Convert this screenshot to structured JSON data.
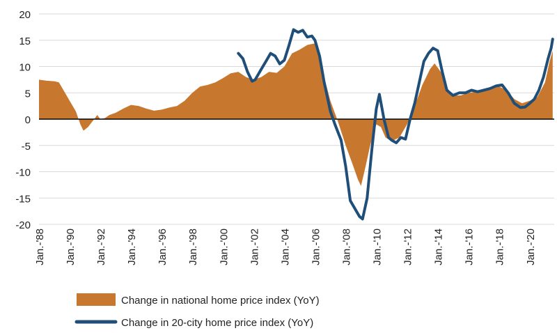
{
  "chart_data": {
    "type": "area",
    "title": "",
    "xlabel": "",
    "ylabel": "",
    "ylim": [
      -20,
      20
    ],
    "yticks": [
      20,
      15,
      10,
      5,
      0,
      -5,
      -10,
      -15,
      -20
    ],
    "xlim": [
      1988,
      2021.6
    ],
    "xticks": [
      {
        "x": 1988,
        "label": "Jan.-'88"
      },
      {
        "x": 1990,
        "label": "Jan.-'90"
      },
      {
        "x": 1992,
        "label": "Jan.-'92"
      },
      {
        "x": 1994,
        "label": "Jan.-'94"
      },
      {
        "x": 1996,
        "label": "Jan.-'96"
      },
      {
        "x": 1998,
        "label": "Jan.-'98"
      },
      {
        "x": 2000,
        "label": "Jan.-'00"
      },
      {
        "x": 2002,
        "label": "Jan.-'02"
      },
      {
        "x": 2004,
        "label": "Jan.-'04"
      },
      {
        "x": 2006,
        "label": "Jan.-'06"
      },
      {
        "x": 2008,
        "label": "Jan.-'08"
      },
      {
        "x": 2010,
        "label": "Jan.-'10"
      },
      {
        "x": 2012,
        "label": "Jan.-'12"
      },
      {
        "x": 2014,
        "label": "Jan.-'14"
      },
      {
        "x": 2016,
        "label": "Jan.-'16"
      },
      {
        "x": 2018,
        "label": "Jan.-'18"
      },
      {
        "x": 2020,
        "label": "Jan.-'20"
      }
    ],
    "grid": true,
    "legend_position": "bottom-left",
    "series": [
      {
        "name": "Change in national home price index (YoY)",
        "kind": "area",
        "color": "#c8772e",
        "points": [
          [
            1988.0,
            7.5
          ],
          [
            1988.5,
            7.3
          ],
          [
            1989.0,
            7.2
          ],
          [
            1989.3,
            7.0
          ],
          [
            1989.6,
            5.5
          ],
          [
            1990.0,
            3.5
          ],
          [
            1990.4,
            1.5
          ],
          [
            1990.7,
            -1.0
          ],
          [
            1990.9,
            -2.2
          ],
          [
            1991.2,
            -1.5
          ],
          [
            1991.6,
            0.0
          ],
          [
            1991.8,
            0.8
          ],
          [
            1992.0,
            0.0
          ],
          [
            1992.3,
            0.2
          ],
          [
            1992.6,
            0.8
          ],
          [
            1993.0,
            1.2
          ],
          [
            1993.5,
            2.0
          ],
          [
            1994.0,
            2.7
          ],
          [
            1994.5,
            2.5
          ],
          [
            1995.0,
            2.0
          ],
          [
            1995.5,
            1.6
          ],
          [
            1996.0,
            1.8
          ],
          [
            1996.5,
            2.2
          ],
          [
            1997.0,
            2.5
          ],
          [
            1997.5,
            3.5
          ],
          [
            1998.0,
            5.0
          ],
          [
            1998.5,
            6.2
          ],
          [
            1999.0,
            6.5
          ],
          [
            1999.5,
            7.0
          ],
          [
            2000.0,
            7.8
          ],
          [
            2000.5,
            8.7
          ],
          [
            2001.0,
            9.0
          ],
          [
            2001.5,
            8.0
          ],
          [
            2002.0,
            7.5
          ],
          [
            2002.5,
            8.0
          ],
          [
            2003.0,
            9.0
          ],
          [
            2003.5,
            8.8
          ],
          [
            2004.0,
            10.0
          ],
          [
            2004.5,
            12.5
          ],
          [
            2005.0,
            13.2
          ],
          [
            2005.5,
            14.1
          ],
          [
            2006.0,
            14.4
          ],
          [
            2006.3,
            12.0
          ],
          [
            2006.6,
            8.0
          ],
          [
            2007.0,
            3.5
          ],
          [
            2007.5,
            -0.5
          ],
          [
            2008.0,
            -5.0
          ],
          [
            2008.5,
            -9.0
          ],
          [
            2008.8,
            -11.5
          ],
          [
            2009.0,
            -12.7
          ],
          [
            2009.3,
            -9.0
          ],
          [
            2009.6,
            -5.0
          ],
          [
            2010.0,
            -1.0
          ],
          [
            2010.3,
            -1.5
          ],
          [
            2010.6,
            -3.5
          ],
          [
            2011.0,
            -4.2
          ],
          [
            2011.5,
            -3.5
          ],
          [
            2012.0,
            -1.0
          ],
          [
            2012.5,
            2.5
          ],
          [
            2013.0,
            6.5
          ],
          [
            2013.5,
            9.5
          ],
          [
            2013.8,
            10.6
          ],
          [
            2014.2,
            9.0
          ],
          [
            2014.6,
            6.0
          ],
          [
            2015.0,
            4.5
          ],
          [
            2015.5,
            4.5
          ],
          [
            2016.0,
            5.0
          ],
          [
            2016.5,
            5.2
          ],
          [
            2017.0,
            5.5
          ],
          [
            2017.5,
            5.8
          ],
          [
            2018.0,
            6.2
          ],
          [
            2018.5,
            5.5
          ],
          [
            2019.0,
            3.8
          ],
          [
            2019.5,
            3.0
          ],
          [
            2020.0,
            3.5
          ],
          [
            2020.5,
            4.2
          ],
          [
            2021.0,
            7.0
          ],
          [
            2021.3,
            11.0
          ],
          [
            2021.5,
            13.0
          ]
        ]
      },
      {
        "name": "Change in 20-city home price index (YoY)",
        "kind": "line",
        "color": "#1f4e79",
        "points": [
          [
            2001.0,
            12.5
          ],
          [
            2001.3,
            11.5
          ],
          [
            2001.6,
            9.0
          ],
          [
            2001.9,
            7.2
          ],
          [
            2002.1,
            7.5
          ],
          [
            2002.5,
            9.5
          ],
          [
            2002.8,
            11.0
          ],
          [
            2003.1,
            12.5
          ],
          [
            2003.4,
            12.0
          ],
          [
            2003.7,
            10.5
          ],
          [
            2004.0,
            11.2
          ],
          [
            2004.3,
            14.0
          ],
          [
            2004.6,
            17.0
          ],
          [
            2004.9,
            16.5
          ],
          [
            2005.2,
            16.9
          ],
          [
            2005.5,
            15.6
          ],
          [
            2005.8,
            15.8
          ],
          [
            2006.0,
            15.0
          ],
          [
            2006.3,
            12.0
          ],
          [
            2006.6,
            7.0
          ],
          [
            2007.0,
            1.5
          ],
          [
            2007.3,
            -1.0
          ],
          [
            2007.7,
            -4.0
          ],
          [
            2008.0,
            -9.0
          ],
          [
            2008.3,
            -15.5
          ],
          [
            2008.6,
            -17.0
          ],
          [
            2008.9,
            -18.5
          ],
          [
            2009.1,
            -19.0
          ],
          [
            2009.4,
            -15.0
          ],
          [
            2009.7,
            -6.0
          ],
          [
            2010.0,
            2.0
          ],
          [
            2010.2,
            4.7
          ],
          [
            2010.5,
            0.0
          ],
          [
            2010.8,
            -3.5
          ],
          [
            2011.0,
            -4.0
          ],
          [
            2011.3,
            -4.5
          ],
          [
            2011.6,
            -3.5
          ],
          [
            2011.9,
            -3.8
          ],
          [
            2012.2,
            0.0
          ],
          [
            2012.5,
            3.0
          ],
          [
            2012.8,
            7.0
          ],
          [
            2013.1,
            11.0
          ],
          [
            2013.4,
            12.5
          ],
          [
            2013.7,
            13.5
          ],
          [
            2014.0,
            13.0
          ],
          [
            2014.3,
            9.0
          ],
          [
            2014.6,
            5.5
          ],
          [
            2015.0,
            4.5
          ],
          [
            2015.4,
            5.0
          ],
          [
            2015.8,
            5.0
          ],
          [
            2016.2,
            5.5
          ],
          [
            2016.6,
            5.2
          ],
          [
            2017.0,
            5.5
          ],
          [
            2017.4,
            5.8
          ],
          [
            2017.8,
            6.3
          ],
          [
            2018.2,
            6.5
          ],
          [
            2018.6,
            5.0
          ],
          [
            2019.0,
            3.0
          ],
          [
            2019.4,
            2.2
          ],
          [
            2019.7,
            2.3
          ],
          [
            2020.0,
            3.0
          ],
          [
            2020.3,
            3.8
          ],
          [
            2020.6,
            5.5
          ],
          [
            2020.9,
            8.0
          ],
          [
            2021.2,
            11.5
          ],
          [
            2021.4,
            13.5
          ],
          [
            2021.5,
            15.2
          ]
        ]
      }
    ]
  }
}
